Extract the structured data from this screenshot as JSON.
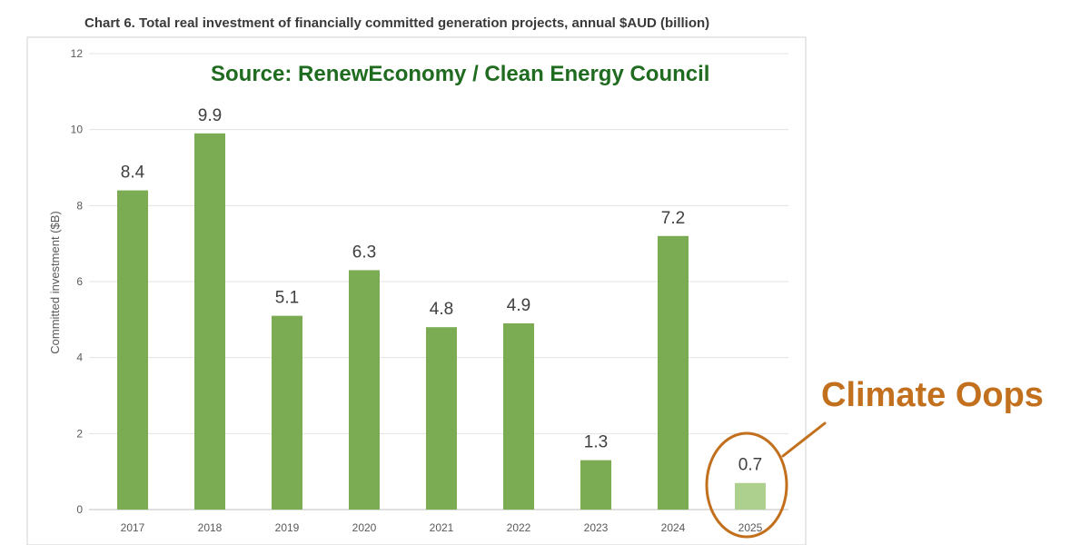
{
  "chart_data": {
    "type": "bar",
    "title": "Chart 6. Total real investment of financially committed generation projects, annual $AUD (billion)",
    "ylabel": "Committed investment ($B)",
    "xlabel": "",
    "categories": [
      "2017",
      "2018",
      "2019",
      "2020",
      "2021",
      "2022",
      "2023",
      "2024",
      "2025"
    ],
    "values": [
      8.4,
      9.9,
      5.1,
      6.3,
      4.8,
      4.9,
      1.3,
      7.2,
      0.7
    ],
    "data_labels": [
      "8.4",
      "9.9",
      "5.1",
      "6.3",
      "4.8",
      "4.9",
      "1.3",
      "7.2",
      "0.7"
    ],
    "ylim": [
      0,
      12
    ],
    "yticks": [
      "0",
      "2",
      "4",
      "6",
      "8",
      "10",
      "12"
    ],
    "grid": true,
    "legend": "none",
    "bar_color": "#7bab52",
    "highlight_index": 8,
    "highlight_color": "#aed08f",
    "source_note": "Source: RenewEconomy / Clean Energy Council",
    "source_color": "#1f6b1f",
    "annotation": {
      "text": "Climate Oops",
      "target": "2025",
      "color": "#c2701d"
    }
  }
}
